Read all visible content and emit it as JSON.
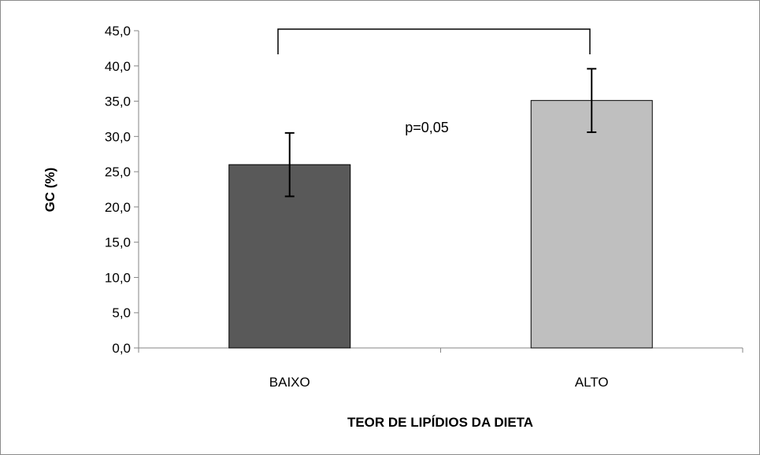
{
  "chart_data": {
    "type": "bar",
    "title": "",
    "xlabel": "TEOR DE LIPÍDIOS DA DIETA",
    "ylabel": "GC (%)",
    "categories": [
      "BAIXO",
      "ALTO"
    ],
    "values": [
      26.0,
      35.1
    ],
    "error": [
      4.5,
      4.5
    ],
    "ylim": [
      0,
      45
    ],
    "ytick_step": 5,
    "ytick_labels": [
      "0,0",
      "5,0",
      "10,0",
      "15,0",
      "20,0",
      "25,0",
      "30,0",
      "35,0",
      "40,0",
      "45,0"
    ],
    "bar_colors": [
      "#595959",
      "#bfbfbf"
    ],
    "grid": false,
    "legend": "none",
    "annotation": {
      "text": "p=0,05",
      "bracket": true
    }
  }
}
